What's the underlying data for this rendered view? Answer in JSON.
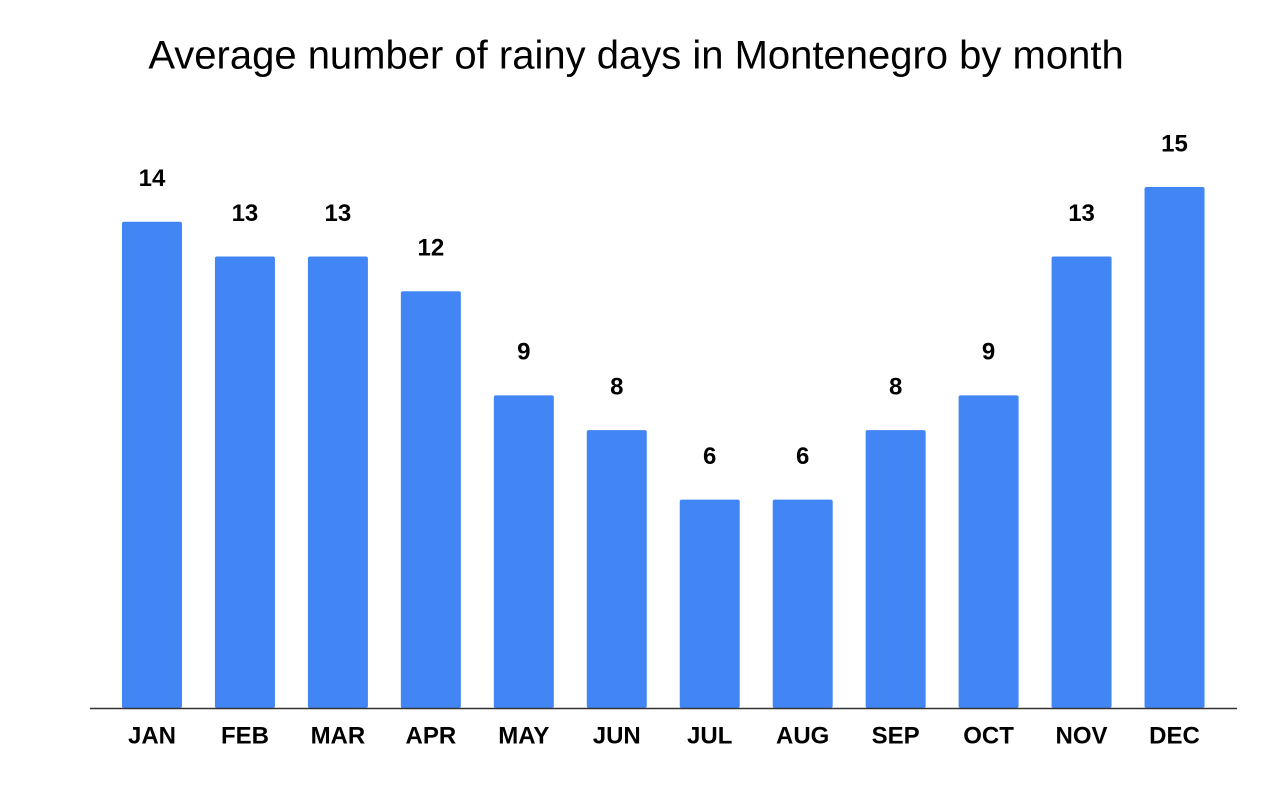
{
  "chart_data": {
    "type": "bar",
    "title": "Average number of rainy days in Montenegro by month",
    "categories": [
      "JAN",
      "FEB",
      "MAR",
      "APR",
      "MAY",
      "JUN",
      "JUL",
      "AUG",
      "SEP",
      "OCT",
      "NOV",
      "DEC"
    ],
    "values": [
      14,
      13,
      13,
      12,
      9,
      8,
      6,
      6,
      8,
      9,
      13,
      15
    ],
    "color": "#4285f4",
    "grid": false
  }
}
